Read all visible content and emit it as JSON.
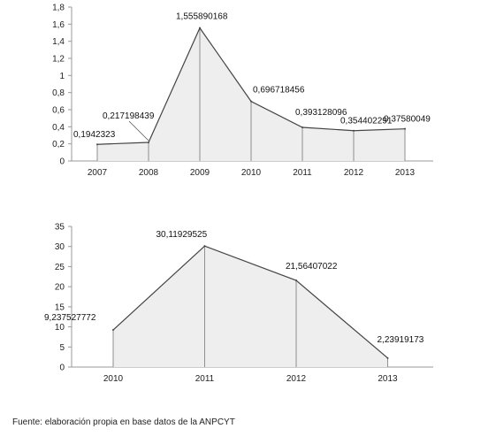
{
  "chart_data": [
    {
      "type": "area",
      "categories": [
        "2007",
        "2008",
        "2009",
        "2010",
        "2011",
        "2012",
        "2013"
      ],
      "values": [
        0.1942323,
        0.217198439,
        1.555890168,
        0.696718456,
        0.393128096,
        0.354402291,
        0.37580049
      ],
      "value_labels": [
        "0,1942323",
        "0,217198439",
        "1,555890168",
        "0,696718456",
        "0,393128096",
        "0,354402291",
        "0,37580049"
      ],
      "yticks": [
        "0",
        "0,2",
        "0,4",
        "0,6",
        "0,8",
        "1",
        "1,2",
        "1,4",
        "1,6",
        "1,8"
      ],
      "ylim": [
        0,
        1.8
      ],
      "grid": false,
      "fill_color": "#eeeeee",
      "line_color": "#444444"
    },
    {
      "type": "area",
      "categories": [
        "2010",
        "2011",
        "2012",
        "2013"
      ],
      "values": [
        9.237527772,
        30.11929525,
        21.56407022,
        2.23919173
      ],
      "value_labels": [
        "9,237527772",
        "30,11929525",
        "21,56407022",
        "2,23919173"
      ],
      "yticks": [
        "0",
        "5",
        "10",
        "15",
        "20",
        "25",
        "30",
        "35"
      ],
      "ylim": [
        0,
        35
      ],
      "grid": false,
      "fill_color": "#eeeeee",
      "line_color": "#444444"
    }
  ],
  "source_note": "Fuente: elaboración propia en base datos de la ANPCYT"
}
